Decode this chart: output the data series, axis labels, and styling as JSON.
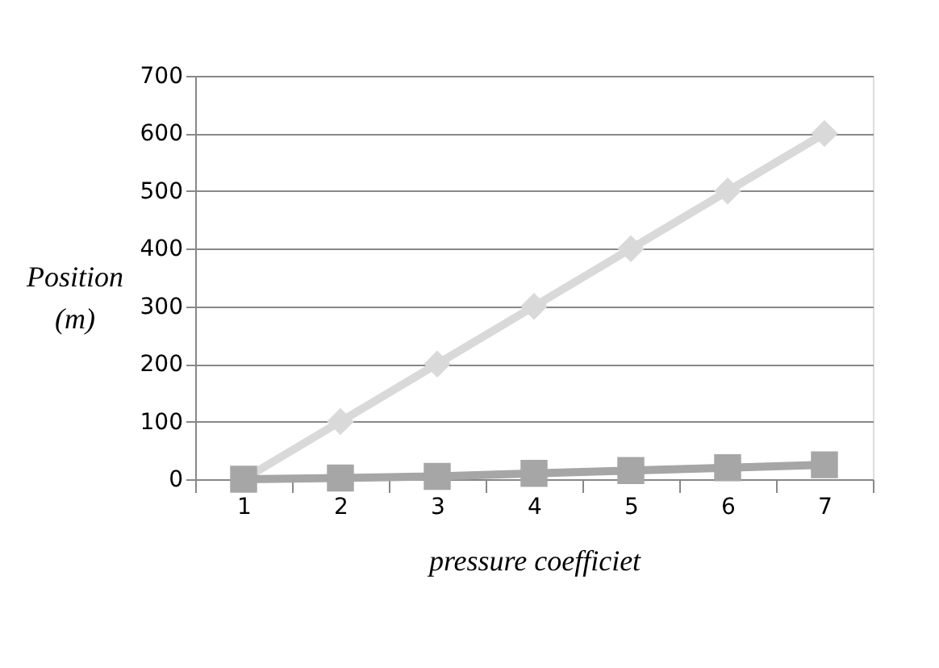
{
  "chart_data": {
    "type": "line",
    "xlabel": "pressure  coefficiet",
    "ylabel": "Position (m)",
    "categories": [
      "1",
      "2",
      "3",
      "4",
      "5",
      "6",
      "7"
    ],
    "series": [
      {
        "color": "#d9d9d9",
        "marker": "diamond",
        "values": [
          0,
          100,
          200,
          300,
          400,
          500,
          600
        ]
      },
      {
        "color": "#a6a6a6",
        "marker": "square",
        "values": [
          0,
          2,
          5,
          10,
          15,
          20,
          25
        ]
      }
    ],
    "ylim": [
      0,
      700
    ],
    "yticks": [
      0,
      100,
      200,
      300,
      400,
      500,
      600,
      700
    ],
    "grid": "y"
  }
}
